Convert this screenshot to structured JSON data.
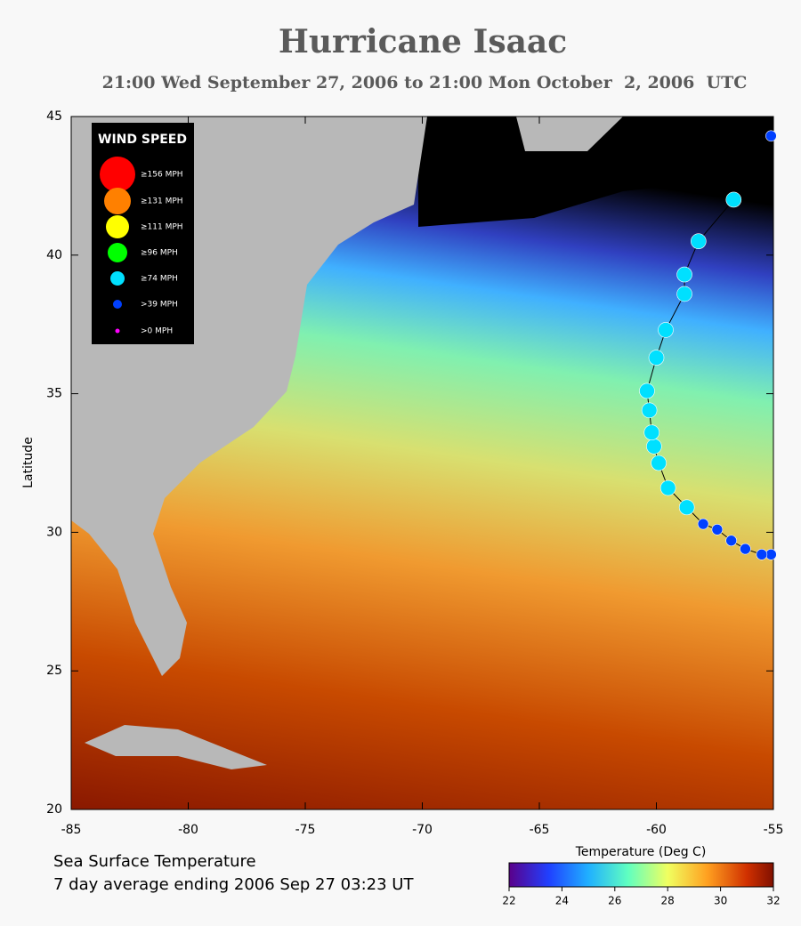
{
  "chart_data": {
    "type": "map",
    "title": "Hurricane Isaac",
    "subtitle": "21:00 Wed September 27, 2006 to 21:00 Mon October  2, 2006  UTC",
    "ylabel": "Latitude",
    "xlim": [
      -85,
      -55
    ],
    "ylim": [
      20,
      45
    ],
    "xticks": [
      -85,
      -80,
      -75,
      -70,
      -65,
      -60,
      -55
    ],
    "yticks": [
      20,
      25,
      30,
      35,
      40,
      45
    ],
    "legend": {
      "title": "WIND SPEED",
      "entries": [
        {
          "label": "≥156 MPH",
          "color": "#ff0000"
        },
        {
          "label": "≥131 MPH",
          "color": "#ff8000"
        },
        {
          "label": "≥111 MPH",
          "color": "#ffff00"
        },
        {
          "label": "≥96 MPH",
          "color": "#00ff00"
        },
        {
          "label": "≥74 MPH",
          "color": "#00e0ff"
        },
        {
          "label": ">39 MPH",
          "color": "#0040ff"
        },
        {
          "label": ">0 MPH",
          "color": "#ff00ff"
        }
      ]
    },
    "track": [
      {
        "lon": -55.1,
        "lat": 29.2,
        "color": "#0040ff"
      },
      {
        "lon": -55.5,
        "lat": 29.2,
        "color": "#0040ff"
      },
      {
        "lon": -56.2,
        "lat": 29.4,
        "color": "#0040ff"
      },
      {
        "lon": -56.8,
        "lat": 29.7,
        "color": "#0040ff"
      },
      {
        "lon": -57.4,
        "lat": 30.1,
        "color": "#0040ff"
      },
      {
        "lon": -58.0,
        "lat": 30.3,
        "color": "#0040ff"
      },
      {
        "lon": -58.7,
        "lat": 30.9,
        "color": "#00e0ff"
      },
      {
        "lon": -59.5,
        "lat": 31.6,
        "color": "#00e0ff"
      },
      {
        "lon": -59.9,
        "lat": 32.5,
        "color": "#00e0ff"
      },
      {
        "lon": -60.1,
        "lat": 33.1,
        "color": "#00e0ff"
      },
      {
        "lon": -60.2,
        "lat": 33.6,
        "color": "#00e0ff"
      },
      {
        "lon": -60.3,
        "lat": 34.4,
        "color": "#00e0ff"
      },
      {
        "lon": -60.4,
        "lat": 35.1,
        "color": "#00e0ff"
      },
      {
        "lon": -60.0,
        "lat": 36.3,
        "color": "#00e0ff"
      },
      {
        "lon": -59.6,
        "lat": 37.3,
        "color": "#00e0ff"
      },
      {
        "lon": -58.8,
        "lat": 38.6,
        "color": "#00e0ff"
      },
      {
        "lon": -58.8,
        "lat": 39.3,
        "color": "#00e0ff"
      },
      {
        "lon": -58.2,
        "lat": 40.5,
        "color": "#00e0ff"
      },
      {
        "lon": -56.7,
        "lat": 42.0,
        "color": "#00e0ff"
      },
      {
        "lon": -55.1,
        "lat": 44.3,
        "color": "#0040ff"
      }
    ],
    "footer": [
      "Sea Surface Temperature",
      "7 day average ending 2006 Sep 27 03:23 UT"
    ],
    "colorbar": {
      "label": "Temperature (Deg C)",
      "lim": [
        22,
        32
      ],
      "ticks": [
        22,
        24,
        26,
        28,
        30,
        32
      ]
    }
  }
}
